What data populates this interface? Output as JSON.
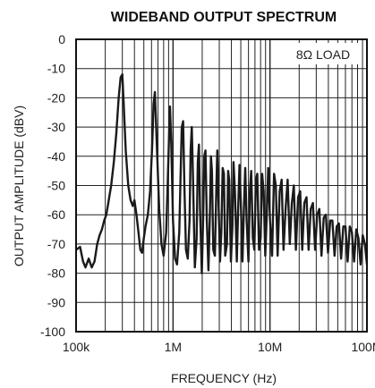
{
  "chart_data": {
    "type": "line",
    "title": "WIDEBAND OUTPUT SPECTRUM",
    "xlabel": "FREQUENCY (Hz)",
    "ylabel": "OUTPUT AMPLITUDE (dBV)",
    "x_scale": "log",
    "xlim": [
      100000,
      100000000
    ],
    "ylim": [
      -100,
      0
    ],
    "grid": true,
    "x_ticks": [
      {
        "value": 100000,
        "label": "100k"
      },
      {
        "value": 1000000,
        "label": "1M"
      },
      {
        "value": 10000000,
        "label": "10M"
      },
      {
        "value": 100000000,
        "label": "100M"
      }
    ],
    "y_ticks": [
      0,
      -10,
      -20,
      -30,
      -40,
      -50,
      -60,
      -70,
      -80,
      -90,
      -100
    ],
    "annotation": "8Ω LOAD",
    "series": [
      {
        "points": [
          [
            100000,
            -72
          ],
          [
            110000,
            -71
          ],
          [
            118000,
            -76
          ],
          [
            125000,
            -78
          ],
          [
            135000,
            -75
          ],
          [
            145000,
            -78
          ],
          [
            155000,
            -76
          ],
          [
            165000,
            -70
          ],
          [
            175000,
            -67
          ],
          [
            185000,
            -65
          ],
          [
            195000,
            -62
          ],
          [
            205000,
            -60
          ],
          [
            215000,
            -56
          ],
          [
            230000,
            -50
          ],
          [
            245000,
            -42
          ],
          [
            260000,
            -32
          ],
          [
            275000,
            -20
          ],
          [
            288000,
            -13
          ],
          [
            300000,
            -12
          ],
          [
            310000,
            -22
          ],
          [
            325000,
            -38
          ],
          [
            345000,
            -50
          ],
          [
            365000,
            -55
          ],
          [
            385000,
            -57
          ],
          [
            400000,
            -55
          ],
          [
            420000,
            -60
          ],
          [
            440000,
            -66
          ],
          [
            460000,
            -72
          ],
          [
            480000,
            -73
          ],
          [
            500000,
            -68
          ],
          [
            520000,
            -64
          ],
          [
            550000,
            -60
          ],
          [
            580000,
            -52
          ],
          [
            610000,
            -36
          ],
          [
            630000,
            -22
          ],
          [
            650000,
            -18
          ],
          [
            680000,
            -36
          ],
          [
            720000,
            -58
          ],
          [
            760000,
            -70
          ],
          [
            800000,
            -74
          ],
          [
            850000,
            -66
          ],
          [
            880000,
            -50
          ],
          [
            910000,
            -33
          ],
          [
            930000,
            -23
          ],
          [
            960000,
            -36
          ],
          [
            1000000,
            -62
          ],
          [
            1050000,
            -75
          ],
          [
            1100000,
            -77
          ],
          [
            1160000,
            -66
          ],
          [
            1200000,
            -45
          ],
          [
            1230000,
            -30
          ],
          [
            1270000,
            -28
          ],
          [
            1310000,
            -50
          ],
          [
            1360000,
            -72
          ],
          [
            1420000,
            -75
          ],
          [
            1480000,
            -62
          ],
          [
            1520000,
            -38
          ],
          [
            1560000,
            -30
          ],
          [
            1610000,
            -48
          ],
          [
            1680000,
            -78
          ],
          [
            1750000,
            -68
          ],
          [
            1800000,
            -42
          ],
          [
            1850000,
            -36
          ],
          [
            1900000,
            -58
          ],
          [
            1980000,
            -80
          ],
          [
            2050000,
            -60
          ],
          [
            2100000,
            -40
          ],
          [
            2160000,
            -38
          ],
          [
            2230000,
            -62
          ],
          [
            2320000,
            -79
          ],
          [
            2400000,
            -60
          ],
          [
            2460000,
            -40
          ],
          [
            2520000,
            -45
          ],
          [
            2600000,
            -72
          ],
          [
            2700000,
            -74
          ],
          [
            2800000,
            -50
          ],
          [
            2860000,
            -38
          ],
          [
            2950000,
            -56
          ],
          [
            3050000,
            -76
          ],
          [
            3150000,
            -66
          ],
          [
            3250000,
            -44
          ],
          [
            3350000,
            -46
          ],
          [
            3450000,
            -74
          ],
          [
            3600000,
            -70
          ],
          [
            3700000,
            -45
          ],
          [
            3800000,
            -48
          ],
          [
            3950000,
            -76
          ],
          [
            4100000,
            -64
          ],
          [
            4200000,
            -42
          ],
          [
            4350000,
            -52
          ],
          [
            4550000,
            -76
          ],
          [
            4700000,
            -58
          ],
          [
            4850000,
            -43
          ],
          [
            5000000,
            -56
          ],
          [
            5200000,
            -76
          ],
          [
            5400000,
            -56
          ],
          [
            5550000,
            -44
          ],
          [
            5750000,
            -62
          ],
          [
            6000000,
            -76
          ],
          [
            6200000,
            -52
          ],
          [
            6400000,
            -45
          ],
          [
            6650000,
            -68
          ],
          [
            6900000,
            -72
          ],
          [
            7150000,
            -48
          ],
          [
            7400000,
            -46
          ],
          [
            7700000,
            -72
          ],
          [
            8000000,
            -68
          ],
          [
            8300000,
            -46
          ],
          [
            8600000,
            -52
          ],
          [
            8950000,
            -74
          ],
          [
            9300000,
            -58
          ],
          [
            9600000,
            -44
          ],
          [
            10000000,
            -62
          ],
          [
            10500000,
            -74
          ],
          [
            11000000,
            -46
          ],
          [
            11500000,
            -50
          ],
          [
            12000000,
            -74
          ],
          [
            12600000,
            -52
          ],
          [
            13200000,
            -48
          ],
          [
            13800000,
            -72
          ],
          [
            14500000,
            -58
          ],
          [
            15200000,
            -48
          ],
          [
            16000000,
            -70
          ],
          [
            16800000,
            -56
          ],
          [
            17600000,
            -50
          ],
          [
            18500000,
            -72
          ],
          [
            19500000,
            -54
          ],
          [
            20500000,
            -52
          ],
          [
            21500000,
            -72
          ],
          [
            22600000,
            -56
          ],
          [
            23800000,
            -54
          ],
          [
            25000000,
            -72
          ],
          [
            26300000,
            -58
          ],
          [
            27700000,
            -56
          ],
          [
            29200000,
            -72
          ],
          [
            30700000,
            -60
          ],
          [
            32300000,
            -58
          ],
          [
            34000000,
            -74
          ],
          [
            35800000,
            -61
          ],
          [
            37700000,
            -60
          ],
          [
            39700000,
            -73
          ],
          [
            41800000,
            -62
          ],
          [
            44000000,
            -62
          ],
          [
            46300000,
            -74
          ],
          [
            48800000,
            -64
          ],
          [
            51400000,
            -63
          ],
          [
            54100000,
            -75
          ],
          [
            57000000,
            -64
          ],
          [
            60000000,
            -64
          ],
          [
            63200000,
            -76
          ],
          [
            66500000,
            -64
          ],
          [
            70000000,
            -66
          ],
          [
            73700000,
            -76
          ],
          [
            77600000,
            -65
          ],
          [
            81700000,
            -68
          ],
          [
            86000000,
            -77
          ],
          [
            90500000,
            -67
          ],
          [
            95300000,
            -70
          ],
          [
            100000000,
            -77
          ]
        ]
      }
    ]
  }
}
